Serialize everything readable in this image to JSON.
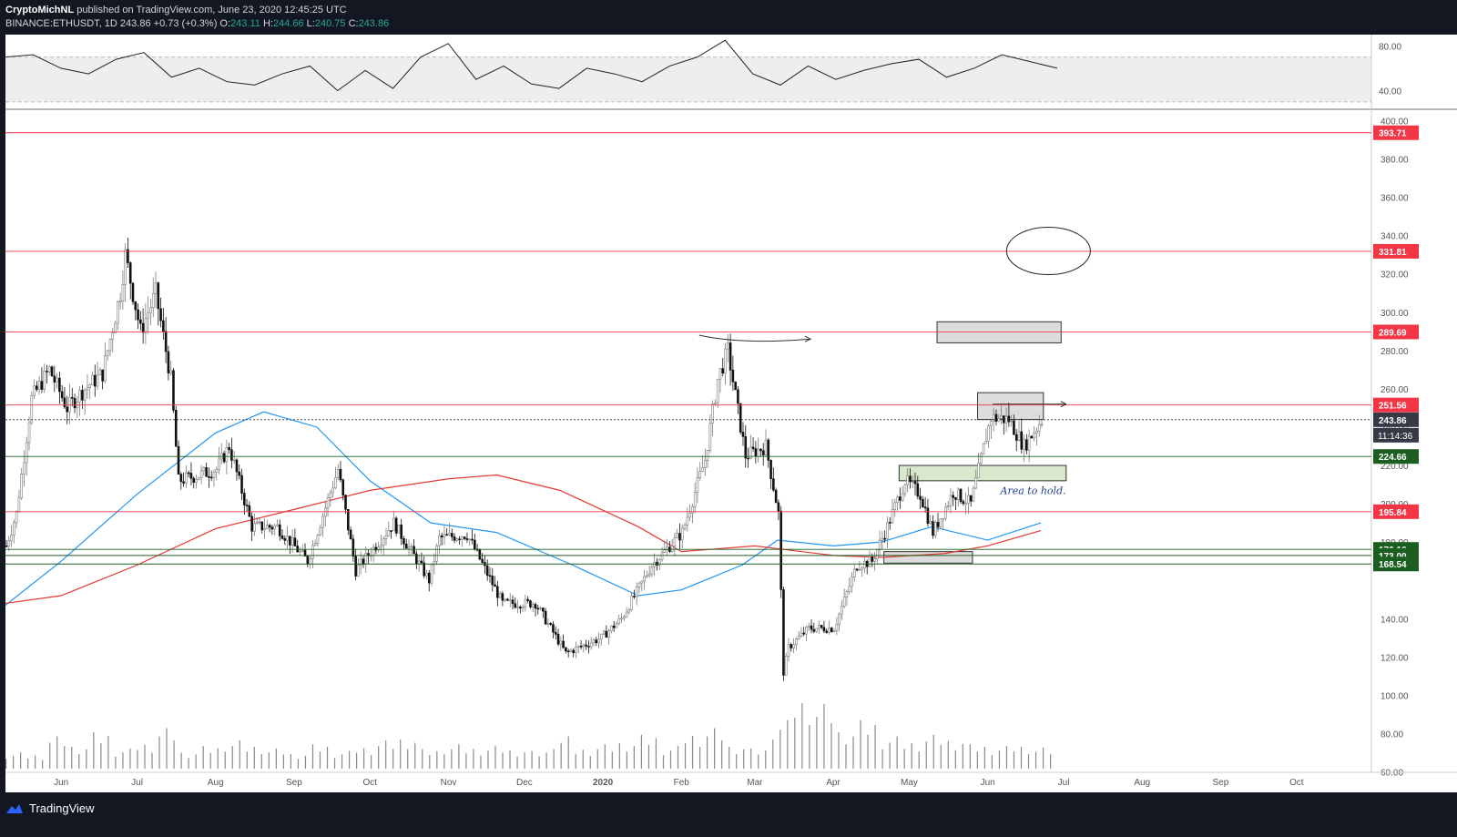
{
  "header": {
    "author": "CryptoMichNL",
    "published_text": "published on TradingView.com, June 23, 2020 12:45:25 UTC",
    "symbol": "BINANCE:ETHUSDT, 1D",
    "last_price": "243.86",
    "change": "+0.73 (+0.3%)",
    "o_label": "O:",
    "o_value": "243.11",
    "h_label": "H:",
    "h_value": "244.66",
    "l_label": "L:",
    "l_value": "240.75",
    "c_label": "C:",
    "c_value": "243.86"
  },
  "footer": {
    "brand": "TradingView"
  },
  "annotation": {
    "area_label": "Area to hold."
  },
  "colors": {
    "up": "#7b7b7b",
    "down": "#111111",
    "ma_blue": "#2196f3",
    "ma_red": "#e53935",
    "level_red": "#f23645",
    "level_green": "#1b5e20",
    "rsi": "#222222"
  },
  "chart_data": {
    "type": "candlestick",
    "symbol": "ETHUSDT",
    "interval": "1D",
    "ylim": [
      55,
      405
    ],
    "y_ticks": [
      "400.00",
      "380.00",
      "360.00",
      "340.00",
      "320.00",
      "300.00",
      "280.00",
      "260.00",
      "240.00",
      "220.00",
      "200.00",
      "180.00",
      "140.00",
      "120.00",
      "100.00",
      "80.00",
      "60.00"
    ],
    "rsi_ticks": [
      "80.00",
      "40.00"
    ],
    "x_ticks": [
      "Jun",
      "Jul",
      "Aug",
      "Sep",
      "Oct",
      "Nov",
      "Dec",
      "2020",
      "Feb",
      "Mar",
      "Apr",
      "May",
      "Jun",
      "Jul",
      "Aug",
      "Sep",
      "Oct"
    ],
    "x_tick_dates": [
      "2019-06-01",
      "2019-07-01",
      "2019-08-01",
      "2019-09-01",
      "2019-10-01",
      "2019-11-01",
      "2019-12-01",
      "2020-01-01",
      "2020-02-01",
      "2020-03-01",
      "2020-04-01",
      "2020-05-01",
      "2020-06-01",
      "2020-07-01",
      "2020-08-01",
      "2020-09-01",
      "2020-10-01"
    ],
    "price_path": [
      [
        "2019-05-10",
        178
      ],
      [
        "2019-05-14",
        195
      ],
      [
        "2019-05-20",
        255
      ],
      [
        "2019-05-27",
        270
      ],
      [
        "2019-06-03",
        250
      ],
      [
        "2019-06-10",
        260
      ],
      [
        "2019-06-17",
        268
      ],
      [
        "2019-06-24",
        310
      ],
      [
        "2019-06-26",
        330
      ],
      [
        "2019-07-02",
        290
      ],
      [
        "2019-07-08",
        310
      ],
      [
        "2019-07-14",
        265
      ],
      [
        "2019-07-17",
        212
      ],
      [
        "2019-07-25",
        215
      ],
      [
        "2019-08-01",
        218
      ],
      [
        "2019-08-06",
        230
      ],
      [
        "2019-08-15",
        188
      ],
      [
        "2019-08-25",
        188
      ],
      [
        "2019-09-06",
        170
      ],
      [
        "2019-09-18",
        218
      ],
      [
        "2019-09-25",
        165
      ],
      [
        "2019-10-10",
        190
      ],
      [
        "2019-10-24",
        160
      ],
      [
        "2019-10-28",
        182
      ],
      [
        "2019-11-08",
        184
      ],
      [
        "2019-11-22",
        148
      ],
      [
        "2019-12-05",
        148
      ],
      [
        "2019-12-17",
        122
      ],
      [
        "2019-12-31",
        130
      ],
      [
        "2020-01-08",
        140
      ],
      [
        "2020-01-20",
        168
      ],
      [
        "2020-02-01",
        185
      ],
      [
        "2020-02-10",
        223
      ],
      [
        "2020-02-15",
        265
      ],
      [
        "2020-02-19",
        280
      ],
      [
        "2020-02-26",
        225
      ],
      [
        "2020-03-05",
        230
      ],
      [
        "2020-03-10",
        195
      ],
      [
        "2020-03-12",
        112
      ],
      [
        "2020-03-14",
        125
      ],
      [
        "2020-03-22",
        135
      ],
      [
        "2020-04-01",
        135
      ],
      [
        "2020-04-10",
        168
      ],
      [
        "2020-04-16",
        170
      ],
      [
        "2020-04-21",
        185
      ],
      [
        "2020-04-29",
        212
      ],
      [
        "2020-05-05",
        205
      ],
      [
        "2020-05-10",
        185
      ],
      [
        "2020-05-18",
        206
      ],
      [
        "2020-05-25",
        200
      ],
      [
        "2020-05-31",
        235
      ],
      [
        "2020-06-02",
        245
      ],
      [
        "2020-06-09",
        244
      ],
      [
        "2020-06-15",
        230
      ],
      [
        "2020-06-22",
        243.86
      ]
    ],
    "ma_blue_path": [
      [
        "2019-05-10",
        147
      ],
      [
        "2019-06-01",
        170
      ],
      [
        "2019-07-01",
        205
      ],
      [
        "2019-08-01",
        237
      ],
      [
        "2019-08-20",
        248
      ],
      [
        "2019-09-10",
        240
      ],
      [
        "2019-10-01",
        212
      ],
      [
        "2019-10-25",
        190
      ],
      [
        "2019-11-20",
        185
      ],
      [
        "2019-12-20",
        168
      ],
      [
        "2020-01-15",
        152
      ],
      [
        "2020-02-01",
        155
      ],
      [
        "2020-02-25",
        168
      ],
      [
        "2020-03-10",
        181
      ],
      [
        "2020-04-01",
        178
      ],
      [
        "2020-04-20",
        180
      ],
      [
        "2020-05-10",
        188
      ],
      [
        "2020-06-01",
        181
      ],
      [
        "2020-06-22",
        190
      ]
    ],
    "ma_red_path": [
      [
        "2019-05-10",
        148
      ],
      [
        "2019-06-01",
        152
      ],
      [
        "2019-07-01",
        168
      ],
      [
        "2019-08-01",
        187
      ],
      [
        "2019-09-01",
        197
      ],
      [
        "2019-10-01",
        207
      ],
      [
        "2019-11-01",
        213
      ],
      [
        "2019-11-20",
        215
      ],
      [
        "2019-12-15",
        207
      ],
      [
        "2020-01-15",
        188
      ],
      [
        "2020-02-01",
        175
      ],
      [
        "2020-03-01",
        178
      ],
      [
        "2020-04-01",
        173
      ],
      [
        "2020-04-20",
        172
      ],
      [
        "2020-05-15",
        174
      ],
      [
        "2020-06-01",
        178
      ],
      [
        "2020-06-22",
        186
      ]
    ],
    "rsi_values": [
      70,
      72,
      60,
      55,
      68,
      74,
      52,
      60,
      48,
      45,
      55,
      62,
      40,
      58,
      42,
      70,
      82,
      50,
      62,
      46,
      42,
      60,
      55,
      48,
      62,
      70,
      85,
      55,
      45,
      62,
      50,
      58,
      64,
      68,
      52,
      60,
      72,
      66,
      60
    ],
    "horizontal_levels": [
      {
        "value": 393.71,
        "label": "393.71",
        "color": "red"
      },
      {
        "value": 331.81,
        "label": "331.81",
        "color": "red"
      },
      {
        "value": 289.69,
        "label": "289.69",
        "color": "red"
      },
      {
        "value": 251.56,
        "label": "251.56",
        "color": "red"
      },
      {
        "value": 243.86,
        "label": "243.86",
        "color": "current"
      },
      {
        "value": 224.66,
        "label": "224.66",
        "color": "green"
      },
      {
        "value": 195.84,
        "label": "195.84",
        "color": "red"
      },
      {
        "value": 176.16,
        "label": "176.16",
        "color": "green"
      },
      {
        "value": 173.0,
        "label": "173.00",
        "color": "green"
      },
      {
        "value": 168.54,
        "label": "168.54",
        "color": "green"
      }
    ],
    "countdown": "11:14:36",
    "zones": [
      {
        "x": [
          "2020-05-12",
          "2020-06-30"
        ],
        "y": [
          284,
          295
        ],
        "kind": "gray"
      },
      {
        "x": [
          "2020-05-28",
          "2020-06-23"
        ],
        "y": [
          244,
          258
        ],
        "kind": "gray"
      },
      {
        "x": [
          "2020-04-27",
          "2020-07-02"
        ],
        "y": [
          212,
          220
        ],
        "kind": "green"
      },
      {
        "x": [
          "2020-04-21",
          "2020-05-26"
        ],
        "y": [
          169,
          175
        ],
        "kind": "gray"
      }
    ],
    "volume": [
      20,
      18,
      40,
      30,
      45,
      25,
      33,
      50,
      22,
      28,
      35,
      30,
      25,
      20,
      30,
      22,
      28,
      35,
      40,
      24,
      30,
      27,
      28,
      25,
      22,
      40,
      26,
      30,
      35,
      42,
      28,
      45,
      50,
      30,
      25,
      60,
      90,
      80,
      50,
      60,
      40,
      35,
      42,
      38,
      30,
      28,
      30,
      26
    ],
    "text_annotation": "Area to hold."
  }
}
